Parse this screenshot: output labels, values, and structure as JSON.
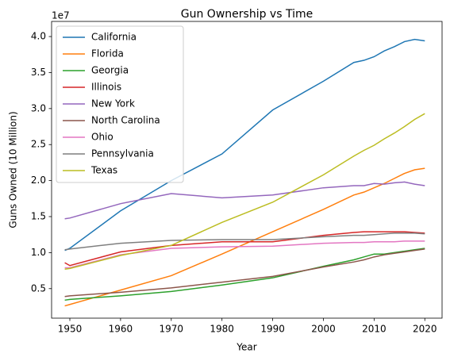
{
  "chart_data": {
    "type": "line",
    "title": "Gun Ownership vs Time",
    "x_label": "Year",
    "y_label": "Guns Owned (10 Million)",
    "y_offset_label": "1e7",
    "x": [
      1949,
      1950,
      1960,
      1970,
      1980,
      1990,
      2000,
      2006,
      2008,
      2010,
      2012,
      2014,
      2016,
      2018,
      2020
    ],
    "series": [
      {
        "name": "California",
        "color": "#1f77b4",
        "values": [
          1.03,
          1.06,
          1.58,
          2.0,
          2.37,
          2.98,
          3.38,
          3.64,
          3.67,
          3.72,
          3.8,
          3.86,
          3.93,
          3.96,
          3.94
        ]
      },
      {
        "name": "Florida",
        "color": "#ff7f0e",
        "values": [
          0.26,
          0.28,
          0.48,
          0.68,
          0.98,
          1.29,
          1.6,
          1.8,
          1.84,
          1.9,
          1.96,
          2.03,
          2.1,
          2.15,
          2.17
        ]
      },
      {
        "name": "Georgia",
        "color": "#2ca02c",
        "values": [
          0.34,
          0.35,
          0.4,
          0.46,
          0.55,
          0.65,
          0.81,
          0.9,
          0.94,
          0.98,
          0.98,
          1.0,
          1.02,
          1.04,
          1.06
        ]
      },
      {
        "name": "Illinois",
        "color": "#d62728",
        "values": [
          0.86,
          0.82,
          1.01,
          1.1,
          1.15,
          1.15,
          1.24,
          1.28,
          1.29,
          1.29,
          1.29,
          1.29,
          1.29,
          1.28,
          1.27
        ]
      },
      {
        "name": "New York",
        "color": "#9467bd",
        "values": [
          1.47,
          1.48,
          1.68,
          1.82,
          1.76,
          1.8,
          1.9,
          1.93,
          1.93,
          1.96,
          1.95,
          1.97,
          1.98,
          1.95,
          1.93
        ]
      },
      {
        "name": "North Carolina",
        "color": "#8c564b",
        "values": [
          0.39,
          0.4,
          0.45,
          0.51,
          0.59,
          0.67,
          0.8,
          0.87,
          0.9,
          0.94,
          0.97,
          0.99,
          1.01,
          1.03,
          1.05
        ]
      },
      {
        "name": "Ohio",
        "color": "#e377c2",
        "values": [
          0.79,
          0.79,
          0.97,
          1.06,
          1.08,
          1.09,
          1.13,
          1.14,
          1.14,
          1.15,
          1.15,
          1.15,
          1.16,
          1.16,
          1.16
        ]
      },
      {
        "name": "Pennsylvania",
        "color": "#7f7f7f",
        "values": [
          1.04,
          1.05,
          1.13,
          1.17,
          1.18,
          1.18,
          1.22,
          1.24,
          1.24,
          1.25,
          1.26,
          1.27,
          1.27,
          1.27,
          1.26
        ]
      },
      {
        "name": "Texas",
        "color": "#bcbd22",
        "values": [
          0.77,
          0.78,
          0.96,
          1.1,
          1.42,
          1.7,
          2.08,
          2.34,
          2.42,
          2.49,
          2.58,
          2.66,
          2.75,
          2.85,
          2.93
        ]
      }
    ],
    "xlim": [
      1946.4,
      2023.4
    ],
    "xticks": [
      1950,
      1960,
      1970,
      1980,
      1990,
      2000,
      2010,
      2020
    ],
    "ylim": [
      0.09,
      4.21
    ],
    "yticks": [
      0.5,
      {
        "value": 1,
        "label": "1.0"
      },
      1.5,
      {
        "value": 2,
        "label": "2.0"
      },
      2.5,
      {
        "value": 3,
        "label": "3.0"
      },
      3.5,
      {
        "value": 4,
        "label": "4.0"
      }
    ],
    "grid": false,
    "legend": "upper left"
  }
}
